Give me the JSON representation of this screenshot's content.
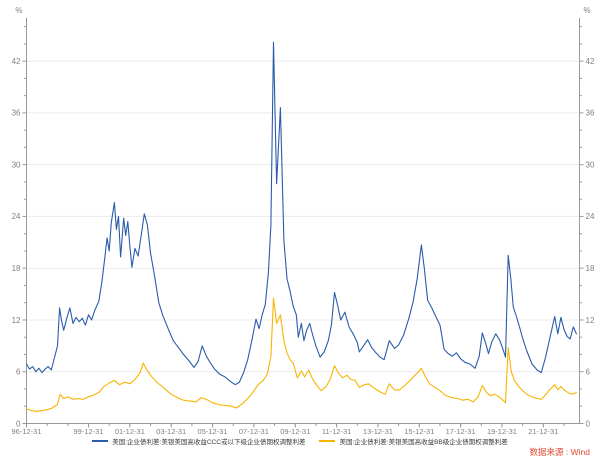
{
  "chart_data": {
    "type": "line",
    "title": "",
    "unit_label_left": "%",
    "unit_label_right": "%",
    "grid": true,
    "legend_position": "bottom",
    "source_note": "数据来源 : Wind",
    "source_color": "#e2492f",
    "axis_color": "#999999",
    "grid_color": "#ececec",
    "tick_label_color": "#808080",
    "x_axis": {
      "start_year": 1997.0,
      "end_year": 2023.75,
      "tick_labels": [
        "96-12-31",
        "99-12-31",
        "01-12-31",
        "03-12-31",
        "05-12-31",
        "07-12-31",
        "09-12-31",
        "11-12-31",
        "13-12-31",
        "15-12-31",
        "17-12-31",
        "19-12-31",
        "21-12-31"
      ],
      "tick_label_years": [
        1997,
        2000,
        2002,
        2004,
        2006,
        2008,
        2010,
        2012,
        2014,
        2016,
        2018,
        2020,
        2022
      ],
      "minor_tick_step_years": 1
    },
    "y_axis": {
      "min": 0,
      "max": 47,
      "major_step": 6,
      "minor_step": 2,
      "tick_labels": [
        "0",
        "6",
        "12",
        "18",
        "24",
        "30",
        "36",
        "42"
      ],
      "tick_values": [
        0,
        6,
        12,
        18,
        24,
        30,
        36,
        42
      ]
    },
    "series": [
      {
        "name": "美国:企业债利差:美银美国高收益CCC或以下级企业债期权调整利差",
        "color": "#2a5caa",
        "points": [
          [
            1997.0,
            6.9
          ],
          [
            1997.15,
            6.3
          ],
          [
            1997.3,
            6.6
          ],
          [
            1997.45,
            6.0
          ],
          [
            1997.6,
            6.4
          ],
          [
            1997.75,
            5.9
          ],
          [
            1997.9,
            6.3
          ],
          [
            1998.05,
            6.6
          ],
          [
            1998.2,
            6.2
          ],
          [
            1998.35,
            7.6
          ],
          [
            1998.5,
            9.0
          ],
          [
            1998.6,
            13.4
          ],
          [
            1998.7,
            11.9
          ],
          [
            1998.8,
            10.8
          ],
          [
            1998.95,
            12.2
          ],
          [
            1999.1,
            13.4
          ],
          [
            1999.25,
            11.6
          ],
          [
            1999.4,
            12.3
          ],
          [
            1999.55,
            11.8
          ],
          [
            1999.7,
            12.2
          ],
          [
            1999.85,
            11.4
          ],
          [
            2000.0,
            12.6
          ],
          [
            2000.15,
            12.0
          ],
          [
            2000.3,
            13.1
          ],
          [
            2000.5,
            14.2
          ],
          [
            2000.65,
            16.5
          ],
          [
            2000.8,
            19.5
          ],
          [
            2000.9,
            21.5
          ],
          [
            2001.0,
            20.0
          ],
          [
            2001.1,
            23.3
          ],
          [
            2001.25,
            25.6
          ],
          [
            2001.35,
            22.5
          ],
          [
            2001.45,
            24.0
          ],
          [
            2001.55,
            19.3
          ],
          [
            2001.7,
            23.8
          ],
          [
            2001.8,
            21.8
          ],
          [
            2001.9,
            23.4
          ],
          [
            2002.0,
            20.5
          ],
          [
            2002.1,
            18.1
          ],
          [
            2002.25,
            20.3
          ],
          [
            2002.4,
            19.4
          ],
          [
            2002.55,
            21.8
          ],
          [
            2002.7,
            24.3
          ],
          [
            2002.85,
            23.0
          ],
          [
            2003.0,
            19.8
          ],
          [
            2003.2,
            17.0
          ],
          [
            2003.4,
            14.0
          ],
          [
            2003.6,
            12.5
          ],
          [
            2003.85,
            11.0
          ],
          [
            2004.1,
            9.6
          ],
          [
            2004.35,
            8.8
          ],
          [
            2004.6,
            8.0
          ],
          [
            2004.85,
            7.3
          ],
          [
            2005.1,
            6.5
          ],
          [
            2005.3,
            7.2
          ],
          [
            2005.5,
            9.0
          ],
          [
            2005.7,
            7.8
          ],
          [
            2005.9,
            7.0
          ],
          [
            2006.1,
            6.3
          ],
          [
            2006.35,
            5.7
          ],
          [
            2006.6,
            5.4
          ],
          [
            2006.85,
            4.9
          ],
          [
            2007.1,
            4.5
          ],
          [
            2007.3,
            4.8
          ],
          [
            2007.5,
            5.9
          ],
          [
            2007.7,
            7.4
          ],
          [
            2007.9,
            9.6
          ],
          [
            2008.1,
            12.1
          ],
          [
            2008.25,
            11.0
          ],
          [
            2008.4,
            12.6
          ],
          [
            2008.55,
            13.8
          ],
          [
            2008.7,
            17.5
          ],
          [
            2008.82,
            23.0
          ],
          [
            2008.95,
            44.2
          ],
          [
            2009.1,
            27.8
          ],
          [
            2009.28,
            36.6
          ],
          [
            2009.45,
            21.2
          ],
          [
            2009.6,
            16.8
          ],
          [
            2009.75,
            15.3
          ],
          [
            2009.9,
            13.6
          ],
          [
            2010.05,
            12.6
          ],
          [
            2010.15,
            10.0
          ],
          [
            2010.3,
            11.6
          ],
          [
            2010.42,
            9.6
          ],
          [
            2010.55,
            10.8
          ],
          [
            2010.7,
            11.6
          ],
          [
            2010.85,
            10.2
          ],
          [
            2011.0,
            9.0
          ],
          [
            2011.2,
            7.7
          ],
          [
            2011.4,
            8.3
          ],
          [
            2011.6,
            9.6
          ],
          [
            2011.75,
            11.4
          ],
          [
            2011.9,
            15.2
          ],
          [
            2012.05,
            13.7
          ],
          [
            2012.2,
            12.0
          ],
          [
            2012.4,
            12.9
          ],
          [
            2012.6,
            11.2
          ],
          [
            2012.8,
            10.4
          ],
          [
            2013.0,
            9.4
          ],
          [
            2013.1,
            8.3
          ],
          [
            2013.3,
            9.0
          ],
          [
            2013.5,
            9.7
          ],
          [
            2013.7,
            8.8
          ],
          [
            2013.9,
            8.2
          ],
          [
            2014.1,
            7.7
          ],
          [
            2014.3,
            7.4
          ],
          [
            2014.55,
            9.6
          ],
          [
            2014.8,
            8.7
          ],
          [
            2015.0,
            9.1
          ],
          [
            2015.25,
            10.3
          ],
          [
            2015.5,
            12.2
          ],
          [
            2015.7,
            14.1
          ],
          [
            2015.9,
            16.8
          ],
          [
            2016.1,
            20.7
          ],
          [
            2016.25,
            17.8
          ],
          [
            2016.4,
            14.3
          ],
          [
            2016.6,
            13.4
          ],
          [
            2016.8,
            12.4
          ],
          [
            2017.0,
            11.4
          ],
          [
            2017.2,
            8.6
          ],
          [
            2017.4,
            8.1
          ],
          [
            2017.6,
            7.8
          ],
          [
            2017.8,
            8.2
          ],
          [
            2018.0,
            7.5
          ],
          [
            2018.2,
            7.1
          ],
          [
            2018.45,
            6.9
          ],
          [
            2018.7,
            6.4
          ],
          [
            2018.9,
            7.8
          ],
          [
            2019.05,
            10.5
          ],
          [
            2019.2,
            9.4
          ],
          [
            2019.35,
            8.1
          ],
          [
            2019.5,
            9.4
          ],
          [
            2019.7,
            10.4
          ],
          [
            2019.9,
            9.6
          ],
          [
            2020.05,
            8.6
          ],
          [
            2020.17,
            7.7
          ],
          [
            2020.3,
            19.5
          ],
          [
            2020.42,
            16.9
          ],
          [
            2020.55,
            13.5
          ],
          [
            2020.7,
            12.4
          ],
          [
            2020.85,
            11.2
          ],
          [
            2021.0,
            9.9
          ],
          [
            2021.2,
            8.4
          ],
          [
            2021.45,
            6.9
          ],
          [
            2021.7,
            6.2
          ],
          [
            2021.9,
            5.9
          ],
          [
            2022.1,
            7.6
          ],
          [
            2022.3,
            9.7
          ],
          [
            2022.55,
            12.4
          ],
          [
            2022.7,
            10.4
          ],
          [
            2022.85,
            12.3
          ],
          [
            2023.0,
            10.9
          ],
          [
            2023.15,
            10.1
          ],
          [
            2023.3,
            9.8
          ],
          [
            2023.45,
            11.2
          ],
          [
            2023.6,
            10.4
          ]
        ]
      },
      {
        "name": "美国:企业债利差:美银美国高收益BB级企业债期权调整利差",
        "color": "#f7b500",
        "points": [
          [
            1997.0,
            1.7
          ],
          [
            1997.25,
            1.5
          ],
          [
            1997.5,
            1.4
          ],
          [
            1997.75,
            1.5
          ],
          [
            1998.0,
            1.6
          ],
          [
            1998.25,
            1.8
          ],
          [
            1998.5,
            2.2
          ],
          [
            1998.62,
            3.4
          ],
          [
            1998.8,
            2.9
          ],
          [
            1999.0,
            3.1
          ],
          [
            1999.25,
            2.8
          ],
          [
            1999.5,
            2.9
          ],
          [
            1999.75,
            2.8
          ],
          [
            2000.0,
            3.1
          ],
          [
            2000.25,
            3.3
          ],
          [
            2000.5,
            3.6
          ],
          [
            2000.75,
            4.3
          ],
          [
            2001.0,
            4.7
          ],
          [
            2001.25,
            5.0
          ],
          [
            2001.5,
            4.5
          ],
          [
            2001.75,
            4.8
          ],
          [
            2002.0,
            4.6
          ],
          [
            2002.25,
            5.1
          ],
          [
            2002.5,
            5.9
          ],
          [
            2002.65,
            7.0
          ],
          [
            2002.8,
            6.3
          ],
          [
            2003.0,
            5.6
          ],
          [
            2003.25,
            4.9
          ],
          [
            2003.5,
            4.4
          ],
          [
            2003.75,
            3.9
          ],
          [
            2004.0,
            3.4
          ],
          [
            2004.3,
            3.0
          ],
          [
            2004.6,
            2.7
          ],
          [
            2004.9,
            2.6
          ],
          [
            2005.2,
            2.5
          ],
          [
            2005.45,
            3.0
          ],
          [
            2005.7,
            2.8
          ],
          [
            2006.0,
            2.4
          ],
          [
            2006.3,
            2.2
          ],
          [
            2006.6,
            2.1
          ],
          [
            2006.9,
            2.0
          ],
          [
            2007.15,
            1.8
          ],
          [
            2007.45,
            2.3
          ],
          [
            2007.7,
            2.9
          ],
          [
            2007.95,
            3.6
          ],
          [
            2008.2,
            4.5
          ],
          [
            2008.45,
            5.0
          ],
          [
            2008.65,
            5.7
          ],
          [
            2008.82,
            7.8
          ],
          [
            2008.95,
            14.5
          ],
          [
            2009.1,
            11.6
          ],
          [
            2009.28,
            12.6
          ],
          [
            2009.45,
            9.6
          ],
          [
            2009.6,
            8.2
          ],
          [
            2009.75,
            7.4
          ],
          [
            2009.9,
            7.0
          ],
          [
            2010.1,
            5.3
          ],
          [
            2010.3,
            6.1
          ],
          [
            2010.45,
            5.4
          ],
          [
            2010.65,
            6.2
          ],
          [
            2010.85,
            5.1
          ],
          [
            2011.05,
            4.4
          ],
          [
            2011.25,
            3.8
          ],
          [
            2011.5,
            4.3
          ],
          [
            2011.7,
            5.2
          ],
          [
            2011.9,
            6.7
          ],
          [
            2012.1,
            5.8
          ],
          [
            2012.3,
            5.3
          ],
          [
            2012.5,
            5.6
          ],
          [
            2012.7,
            5.1
          ],
          [
            2012.9,
            5.0
          ],
          [
            2013.1,
            4.2
          ],
          [
            2013.35,
            4.5
          ],
          [
            2013.55,
            4.6
          ],
          [
            2013.75,
            4.2
          ],
          [
            2013.95,
            3.9
          ],
          [
            2014.15,
            3.6
          ],
          [
            2014.35,
            3.4
          ],
          [
            2014.55,
            4.6
          ],
          [
            2014.8,
            3.9
          ],
          [
            2015.05,
            3.9
          ],
          [
            2015.3,
            4.4
          ],
          [
            2015.55,
            5.0
          ],
          [
            2015.8,
            5.6
          ],
          [
            2016.1,
            6.4
          ],
          [
            2016.3,
            5.4
          ],
          [
            2016.5,
            4.6
          ],
          [
            2016.75,
            4.2
          ],
          [
            2017.0,
            3.8
          ],
          [
            2017.25,
            3.3
          ],
          [
            2017.55,
            3.0
          ],
          [
            2017.85,
            2.9
          ],
          [
            2018.1,
            2.7
          ],
          [
            2018.35,
            2.8
          ],
          [
            2018.6,
            2.5
          ],
          [
            2018.85,
            3.1
          ],
          [
            2019.05,
            4.4
          ],
          [
            2019.25,
            3.6
          ],
          [
            2019.45,
            3.2
          ],
          [
            2019.65,
            3.4
          ],
          [
            2019.85,
            3.1
          ],
          [
            2020.05,
            2.7
          ],
          [
            2020.17,
            2.4
          ],
          [
            2020.3,
            8.8
          ],
          [
            2020.45,
            6.0
          ],
          [
            2020.6,
            5.0
          ],
          [
            2020.8,
            4.3
          ],
          [
            2021.0,
            3.8
          ],
          [
            2021.25,
            3.3
          ],
          [
            2021.55,
            3.0
          ],
          [
            2021.9,
            2.8
          ],
          [
            2022.1,
            3.3
          ],
          [
            2022.3,
            3.9
          ],
          [
            2022.55,
            4.5
          ],
          [
            2022.7,
            3.9
          ],
          [
            2022.85,
            4.3
          ],
          [
            2023.05,
            3.8
          ],
          [
            2023.25,
            3.5
          ],
          [
            2023.45,
            3.4
          ],
          [
            2023.6,
            3.6
          ]
        ]
      }
    ]
  }
}
